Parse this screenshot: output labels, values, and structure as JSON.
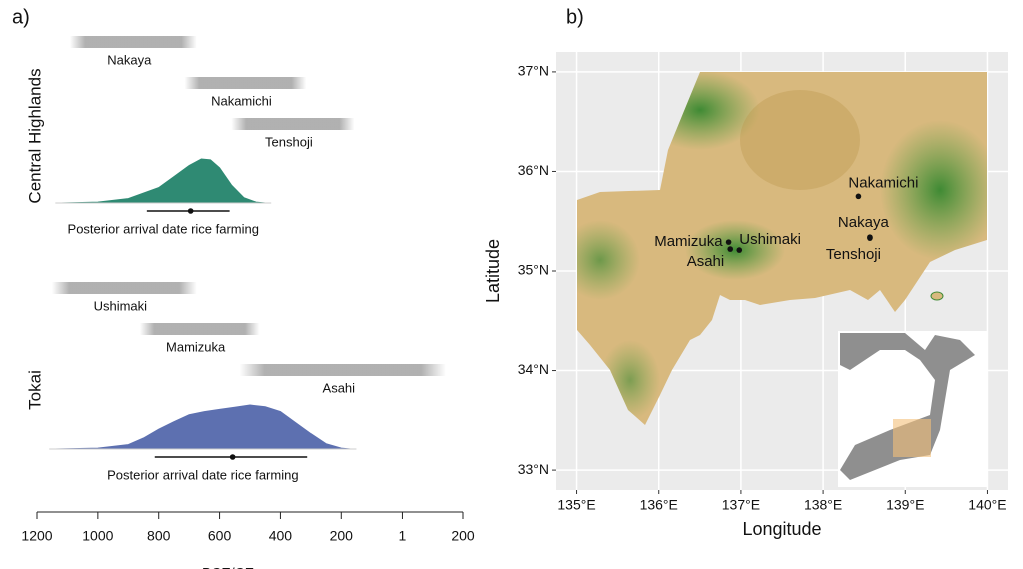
{
  "chart_data": [
    {
      "type": "interval-density",
      "panel_label": "a)",
      "x_label": "BCE/CE",
      "xlim": [
        -1200,
        200
      ],
      "xticks": [
        {
          "value": -1200,
          "label": "1200"
        },
        {
          "value": -1000,
          "label": "1000"
        },
        {
          "value": -800,
          "label": "800"
        },
        {
          "value": -600,
          "label": "600"
        },
        {
          "value": -400,
          "label": "400"
        },
        {
          "value": -200,
          "label": "200"
        },
        1,
        200
      ],
      "groups": [
        {
          "name": "Central Highlands",
          "sites": [
            {
              "name": "Nakaya",
              "range": [
                -1092,
                -675
              ]
            },
            {
              "name": "Nakamichi",
              "range": [
                -715,
                -315
              ]
            },
            {
              "name": "Tenshoji",
              "range": [
                -561,
                -157
              ]
            }
          ],
          "density": {
            "label": "Posterior arrival date rice farming",
            "color": "#2f8a73",
            "x": [
              -1120,
              -1000,
              -900,
              -800,
              -750,
              -700,
              -660,
              -630,
              -600,
              -560,
              -520,
              -480,
              -450
            ],
            "y": [
              0,
              0.02,
              0.1,
              0.35,
              0.6,
              0.85,
              1,
              0.98,
              0.8,
              0.4,
              0.12,
              0.02,
              0
            ],
            "interval": [
              -839,
              -567
            ],
            "point": -695
          }
        },
        {
          "name": "Tokai",
          "sites": [
            {
              "name": "Ushimaki",
              "range": [
                -1151,
                -675
              ]
            },
            {
              "name": "Mamizuka",
              "range": [
                -862,
                -469
              ]
            },
            {
              "name": "Asahi",
              "range": [
                -534,
                144
              ]
            }
          ],
          "density": {
            "label": "Posterior arrival date rice farming",
            "color": "#5d70b0",
            "x": [
              -1140,
              -1000,
              -900,
              -850,
              -800,
              -750,
              -700,
              -650,
              -600,
              -550,
              -500,
              -450,
              -400,
              -350,
              -300,
              -250,
              -200,
              -170
            ],
            "y": [
              0,
              0.02,
              0.1,
              0.25,
              0.45,
              0.62,
              0.78,
              0.85,
              0.9,
              0.95,
              1,
              0.96,
              0.85,
              0.6,
              0.35,
              0.12,
              0.02,
              0
            ],
            "interval": [
              -813,
              -312
            ],
            "point": -557
          }
        }
      ]
    },
    {
      "type": "map",
      "panel_label": "b)",
      "x_label": "Longitude",
      "y_label": "Latitude",
      "xlim": [
        134.75,
        140.25
      ],
      "ylim": [
        32.8,
        37.2
      ],
      "xticks": [
        {
          "value": 135,
          "label": "135°E"
        },
        {
          "value": 136,
          "label": "136°E"
        },
        {
          "value": 137,
          "label": "137°E"
        },
        {
          "value": 138,
          "label": "138°E"
        },
        {
          "value": 139,
          "label": "139°E"
        },
        {
          "value": 140,
          "label": "140°E"
        }
      ],
      "yticks": [
        {
          "value": 33,
          "label": "33°N"
        },
        {
          "value": 34,
          "label": "34°N"
        },
        {
          "value": 35,
          "label": "35°N"
        },
        {
          "value": 36,
          "label": "36°N"
        },
        {
          "value": 37,
          "label": "37°N"
        }
      ],
      "points": {
        "names": [
          "Nakamichi",
          "Nakaya",
          "Tenshoji",
          "Mamizuka",
          "Ushimaki",
          "Asahi"
        ],
        "x": [
          138.43,
          138.57,
          138.57,
          136.85,
          136.98,
          136.87
        ],
        "y": [
          35.75,
          35.34,
          35.33,
          35.29,
          35.21,
          35.22
        ]
      }
    }
  ]
}
